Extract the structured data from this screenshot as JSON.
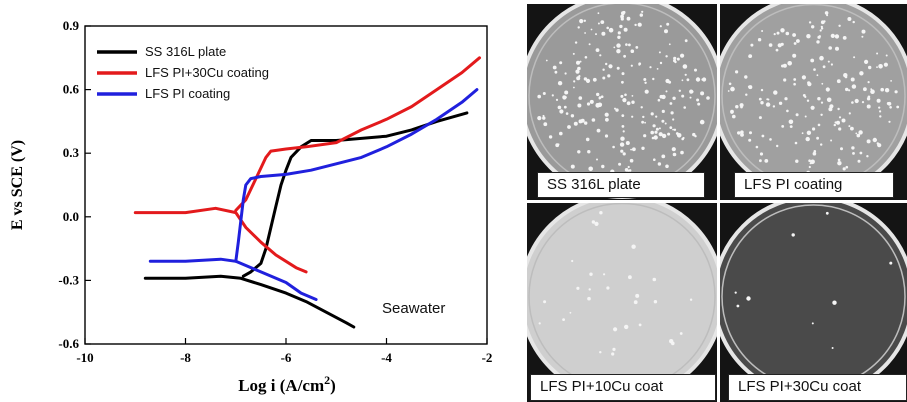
{
  "chart_data": {
    "type": "line",
    "xlabel": "Log i (A/cm",
    "xlabel_sup": "2",
    "xlabel_close": ")",
    "ylabel": "E vs SCE (V)",
    "xlim": [
      -10,
      -2
    ],
    "ylim": [
      -0.6,
      0.9
    ],
    "xticks": [
      -10,
      -8,
      -6,
      -4,
      -2
    ],
    "yticks": [
      -0.6,
      -0.3,
      0.0,
      0.3,
      0.6,
      0.9
    ],
    "xtick_labels": [
      "-10",
      "-8",
      "-6",
      "-4",
      "-2"
    ],
    "ytick_labels": [
      "-0.6",
      "-0.3",
      "0.0",
      "0.3",
      "0.6",
      "0.9"
    ],
    "annotation": "Seawater",
    "legend_position": "top-left",
    "grid": false,
    "series": [
      {
        "name": "SS 316L plate",
        "color": "#000000",
        "cathodic": [
          [
            -8.8,
            -0.29
          ],
          [
            -8.0,
            -0.29
          ],
          [
            -7.3,
            -0.28
          ],
          [
            -6.9,
            -0.29
          ],
          [
            -6.5,
            -0.32
          ],
          [
            -6.0,
            -0.36
          ],
          [
            -5.6,
            -0.4
          ],
          [
            -5.2,
            -0.45
          ],
          [
            -4.8,
            -0.5
          ],
          [
            -4.65,
            -0.52
          ]
        ],
        "anodic": [
          [
            -6.85,
            -0.28
          ],
          [
            -6.7,
            -0.26
          ],
          [
            -6.5,
            -0.22
          ],
          [
            -6.4,
            -0.15
          ],
          [
            -6.3,
            -0.05
          ],
          [
            -6.2,
            0.05
          ],
          [
            -6.1,
            0.15
          ],
          [
            -6.0,
            0.22
          ],
          [
            -5.9,
            0.28
          ],
          [
            -5.7,
            0.33
          ],
          [
            -5.5,
            0.36
          ],
          [
            -5.0,
            0.36
          ],
          [
            -4.0,
            0.38
          ],
          [
            -3.5,
            0.41
          ],
          [
            -3.0,
            0.45
          ],
          [
            -2.4,
            0.49
          ]
        ]
      },
      {
        "name": "LFS PI+30Cu coating",
        "color": "#e31a1c",
        "cathodic": [
          [
            -9.0,
            0.02
          ],
          [
            -8.0,
            0.02
          ],
          [
            -7.4,
            0.04
          ],
          [
            -7.0,
            0.02
          ],
          [
            -6.8,
            -0.05
          ],
          [
            -6.5,
            -0.12
          ],
          [
            -6.2,
            -0.18
          ],
          [
            -5.8,
            -0.24
          ],
          [
            -5.6,
            -0.26
          ]
        ],
        "anodic": [
          [
            -7.0,
            0.03
          ],
          [
            -6.8,
            0.08
          ],
          [
            -6.6,
            0.18
          ],
          [
            -6.4,
            0.28
          ],
          [
            -6.3,
            0.31
          ],
          [
            -6.0,
            0.32
          ],
          [
            -5.6,
            0.33
          ],
          [
            -5.0,
            0.35
          ],
          [
            -4.5,
            0.41
          ],
          [
            -4.0,
            0.46
          ],
          [
            -3.5,
            0.52
          ],
          [
            -3.0,
            0.6
          ],
          [
            -2.5,
            0.68
          ],
          [
            -2.15,
            0.75
          ]
        ]
      },
      {
        "name": "LFS PI coating",
        "color": "#2020dd",
        "cathodic": [
          [
            -8.7,
            -0.21
          ],
          [
            -8.0,
            -0.21
          ],
          [
            -7.3,
            -0.2
          ],
          [
            -7.0,
            -0.21
          ],
          [
            -6.5,
            -0.26
          ],
          [
            -6.0,
            -0.31
          ],
          [
            -5.7,
            -0.36
          ],
          [
            -5.4,
            -0.39
          ]
        ],
        "anodic": [
          [
            -7.0,
            -0.21
          ],
          [
            -6.95,
            -0.12
          ],
          [
            -6.9,
            -0.02
          ],
          [
            -6.85,
            0.08
          ],
          [
            -6.8,
            0.15
          ],
          [
            -6.7,
            0.18
          ],
          [
            -6.5,
            0.19
          ],
          [
            -6.0,
            0.2
          ],
          [
            -5.5,
            0.22
          ],
          [
            -5.0,
            0.25
          ],
          [
            -4.5,
            0.28
          ],
          [
            -4.0,
            0.33
          ],
          [
            -3.5,
            0.39
          ],
          [
            -3.0,
            0.46
          ],
          [
            -2.5,
            0.54
          ],
          [
            -2.2,
            0.6
          ]
        ]
      }
    ]
  },
  "dishes": [
    {
      "label": "SS 316L plate",
      "colony_count": 230,
      "dish_tone": "#9a9a9a"
    },
    {
      "label": "LFS PI coating",
      "colony_count": 200,
      "dish_tone": "#a0a0a0"
    },
    {
      "label": "LFS PI+10Cu coat",
      "colony_count": 30,
      "dish_tone": "#cfcfcf"
    },
    {
      "label": "LFS PI+30Cu coat",
      "colony_count": 9,
      "dish_tone": "#4a4a4a"
    }
  ]
}
